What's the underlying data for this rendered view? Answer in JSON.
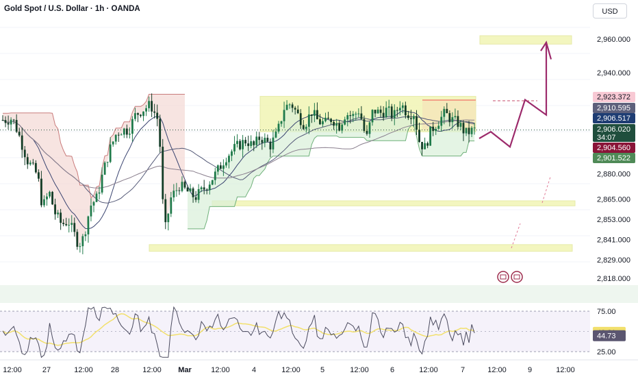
{
  "header": {
    "title": "Gold Spot / U.S. Dollar · 1h · OANDA",
    "currency_button": "USD"
  },
  "colors": {
    "up": "#26a69a",
    "down": "#ef5350",
    "candle": "#1f7a4a",
    "zone_fill": "#f2f5b5",
    "zone_stroke": "#e2e79a",
    "forecast": "#9c2a6b",
    "rsi": "#7e57c2",
    "rsi_ma": "#f2e06c"
  },
  "chart_data": {
    "type": "candlestick",
    "symbol": "Gold Spot / U.S. Dollar",
    "interval": "1h",
    "source": "OANDA",
    "price_axis_ticks": [
      "2,960.000",
      "2,940.000",
      "2,880.000",
      "2,865.000",
      "2,853.000",
      "2,841.000",
      "2,829.000",
      "2,818.000"
    ],
    "time_axis_ticks": [
      "12:00",
      "27",
      "12:00",
      "28",
      "12:00",
      "Mar",
      "12:00",
      "4",
      "12:00",
      "5",
      "12:00",
      "6",
      "12:00",
      "7",
      "12:00",
      "9",
      "12:00"
    ],
    "price_badges": [
      {
        "label": "2,923.372",
        "color": "#f8c9d4",
        "text": "#131722",
        "price": 2923.372
      },
      {
        "label": "2,910.595",
        "color": "#5d607b",
        "text": "#ffffff",
        "price": 2910.595
      },
      {
        "label": "2,906.517",
        "color": "#1e3d73",
        "text": "#ffffff",
        "price": 2906.517
      },
      {
        "label": "2,906.020",
        "sub": "34:07",
        "color": "#1f4e3d",
        "text": "#ffffff",
        "price": 2906.02
      },
      {
        "label": "2,904.560",
        "color": "#8a1438",
        "text": "#ffffff",
        "price": 2904.56
      },
      {
        "label": "2,901.522",
        "color": "#4f8a57",
        "text": "#ffffff",
        "price": 2901.522
      }
    ],
    "zones": [
      {
        "name": "target",
        "from": 2957,
        "to": 2962
      },
      {
        "name": "consolidation-range",
        "from": 2905,
        "to": 2926
      },
      {
        "name": "support-1",
        "from": 2861,
        "to": 2864
      },
      {
        "name": "support-2",
        "from": 2834,
        "to": 2838
      }
    ],
    "forecast_path": [
      2901,
      2905,
      2896,
      2924,
      2915,
      2958,
      2952
    ],
    "rsi": {
      "levels": [
        "75.00",
        "25.00"
      ],
      "value": "44.73",
      "ma_value": "48.81"
    },
    "indicators": [
      "Ichimoku-style cloud",
      "moving averages",
      "RSI(14)"
    ]
  }
}
